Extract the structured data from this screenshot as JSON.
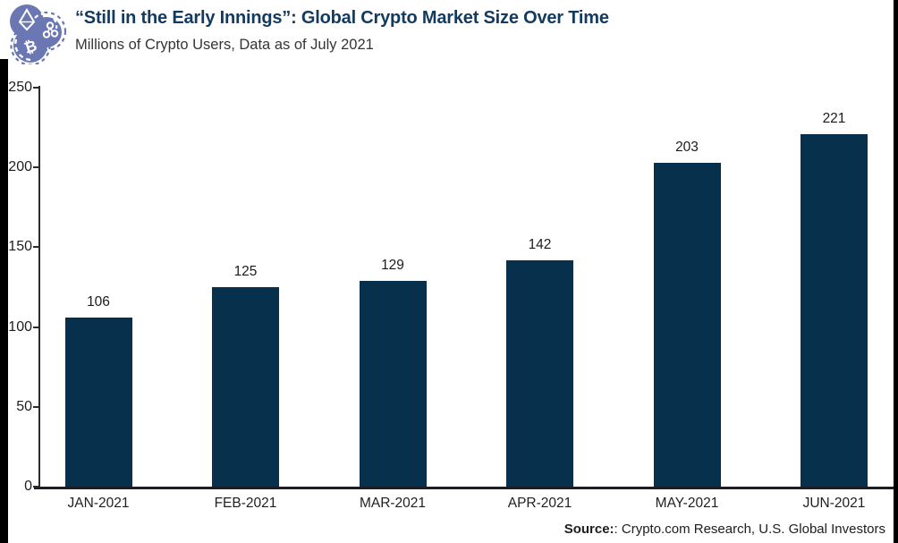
{
  "header": {
    "logo": "crypto-coins-logo",
    "title": "“Still in the Early Innings”: Global Crypto Market Size Over Time",
    "subtitle": "Millions of Crypto Users, Data as of July 2021"
  },
  "footer": {
    "source_label": "Source:",
    "source_rest": ": Crypto.com Research, U.S. Global Investors"
  },
  "colors": {
    "bar": "#06304b",
    "title": "#133a5f",
    "subtitle": "#353535",
    "axis": "#2b2b30",
    "baseline": "#1c1c22",
    "label_text": "#1e1e1e",
    "logo": "#6b77b3",
    "border": "#000000",
    "background": "#ffffff"
  },
  "chart_data": {
    "type": "bar",
    "categories": [
      "JAN-2021",
      "FEB-2021",
      "MAR-2021",
      "APR-2021",
      "MAY-2021",
      "JUN-2021"
    ],
    "values": [
      106,
      125,
      129,
      142,
      203,
      221
    ],
    "title": "“Still in the Early Innings”: Global Crypto Market Size Over Time",
    "subtitle": "Millions of Crypto Users, Data as of July 2021",
    "xlabel": "",
    "ylabel": "",
    "ylim": [
      0,
      250
    ],
    "yticks": [
      0,
      50,
      100,
      150,
      200,
      250
    ],
    "grid": false,
    "legend": null,
    "data_labels": true,
    "source": "Source:: Crypto.com Research, U.S. Global Investors"
  }
}
